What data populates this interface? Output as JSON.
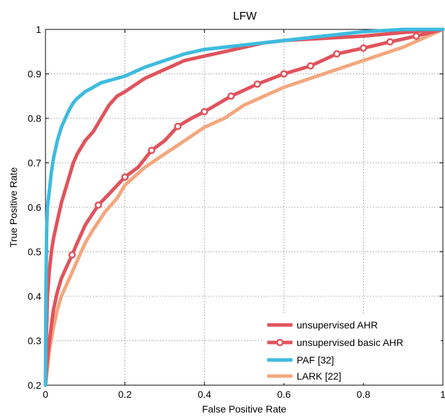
{
  "chart_data": {
    "type": "line",
    "title": "LFW",
    "xlabel": "False Positive Rate",
    "ylabel": "True Positive Rate",
    "xlim": [
      0,
      1
    ],
    "ylim": [
      0.2,
      1
    ],
    "xticks": [
      "0",
      "0.2",
      "0.4",
      "0.6",
      "0.8",
      "1"
    ],
    "yticks": [
      "0.2",
      "0.3",
      "0.4",
      "0.5",
      "0.6",
      "0.7",
      "0.8",
      "0.9",
      "1"
    ],
    "grid": true,
    "legend_position": "bottom-right",
    "series": [
      {
        "name": "unsupervised AHR",
        "color": "#e0535c",
        "marker": "none",
        "x": [
          0,
          0.002,
          0.005,
          0.01,
          0.015,
          0.02,
          0.03,
          0.04,
          0.05,
          0.06,
          0.07,
          0.08,
          0.1,
          0.12,
          0.14,
          0.16,
          0.18,
          0.2,
          0.25,
          0.3,
          0.35,
          0.4,
          0.45,
          0.5,
          0.55,
          0.6,
          0.7,
          0.8,
          0.9,
          1.0
        ],
        "y": [
          0.2,
          0.3,
          0.4,
          0.46,
          0.5,
          0.53,
          0.57,
          0.61,
          0.64,
          0.67,
          0.7,
          0.72,
          0.75,
          0.77,
          0.8,
          0.83,
          0.85,
          0.86,
          0.89,
          0.91,
          0.93,
          0.94,
          0.95,
          0.96,
          0.97,
          0.975,
          0.98,
          0.985,
          0.993,
          1.0
        ]
      },
      {
        "name": "unsupervised basic AHR",
        "color": "#e0535c",
        "marker": "circle",
        "x": [
          0,
          0.005,
          0.01,
          0.02,
          0.03,
          0.04,
          0.05,
          0.067,
          0.08,
          0.1,
          0.133,
          0.16,
          0.2,
          0.233,
          0.267,
          0.3,
          0.333,
          0.367,
          0.4,
          0.467,
          0.533,
          0.6,
          0.667,
          0.733,
          0.8,
          0.867,
          0.933,
          1.0
        ],
        "y": [
          0.2,
          0.26,
          0.3,
          0.37,
          0.41,
          0.44,
          0.46,
          0.493,
          0.52,
          0.56,
          0.605,
          0.63,
          0.668,
          0.69,
          0.728,
          0.75,
          0.782,
          0.8,
          0.815,
          0.85,
          0.877,
          0.9,
          0.918,
          0.945,
          0.958,
          0.972,
          0.985,
          1.0
        ],
        "marker_x": [
          0.067,
          0.133,
          0.2,
          0.267,
          0.333,
          0.4,
          0.467,
          0.533,
          0.6,
          0.667,
          0.733,
          0.8,
          0.867,
          0.933
        ],
        "marker_y": [
          0.493,
          0.605,
          0.668,
          0.728,
          0.782,
          0.815,
          0.85,
          0.877,
          0.9,
          0.918,
          0.945,
          0.958,
          0.972,
          0.985
        ]
      },
      {
        "name": "PAF [32]",
        "color": "#3ebbe0",
        "marker": "none",
        "x": [
          0,
          0.001,
          0.003,
          0.005,
          0.01,
          0.015,
          0.02,
          0.03,
          0.04,
          0.05,
          0.06,
          0.07,
          0.08,
          0.1,
          0.12,
          0.14,
          0.16,
          0.18,
          0.2,
          0.25,
          0.3,
          0.35,
          0.4,
          0.45,
          0.5,
          0.6,
          0.7,
          0.8,
          0.9,
          1.0
        ],
        "y": [
          0.2,
          0.4,
          0.55,
          0.6,
          0.64,
          0.68,
          0.71,
          0.75,
          0.78,
          0.8,
          0.82,
          0.835,
          0.845,
          0.86,
          0.87,
          0.88,
          0.885,
          0.89,
          0.895,
          0.915,
          0.93,
          0.945,
          0.955,
          0.96,
          0.965,
          0.975,
          0.985,
          0.995,
          1.0,
          1.0
        ]
      },
      {
        "name": "LARK [22]",
        "color": "#f3a77e",
        "marker": "none",
        "x": [
          0,
          0.005,
          0.01,
          0.02,
          0.03,
          0.04,
          0.05,
          0.06,
          0.07,
          0.08,
          0.1,
          0.12,
          0.15,
          0.18,
          0.2,
          0.25,
          0.3,
          0.35,
          0.4,
          0.45,
          0.5,
          0.55,
          0.6,
          0.7,
          0.8,
          0.9,
          1.0
        ],
        "y": [
          0.2,
          0.24,
          0.28,
          0.33,
          0.37,
          0.4,
          0.42,
          0.44,
          0.46,
          0.48,
          0.52,
          0.55,
          0.59,
          0.62,
          0.65,
          0.69,
          0.72,
          0.75,
          0.78,
          0.8,
          0.83,
          0.85,
          0.87,
          0.9,
          0.93,
          0.96,
          1.0
        ]
      }
    ]
  }
}
